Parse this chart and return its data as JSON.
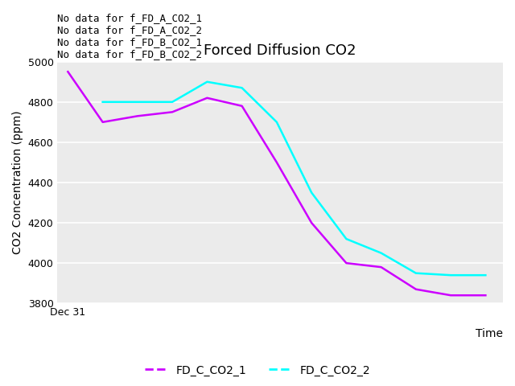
{
  "title": "Forced Diffusion CO2",
  "xlabel": "Time",
  "ylabel": "CO2 Concentration (ppm)",
  "ylim": [
    3800,
    5000
  ],
  "yticks": [
    3800,
    4000,
    4200,
    4400,
    4600,
    4800,
    5000
  ],
  "plot_bg_color": "#ebebeb",
  "fig_bg_color": "#ffffff",
  "grid_color": "#ffffff",
  "annotations": [
    "No data for f_FD_A_CO2_1",
    "No data for f_FD_A_CO2_2",
    "No data for f_FD_B_CO2_1",
    "No data for f_FD_B_CO2_2"
  ],
  "series": [
    {
      "label": "FD_C_CO2_1",
      "color": "#cc00ff",
      "x": [
        0,
        1,
        2,
        3,
        4,
        5,
        6,
        7,
        8,
        9,
        10,
        11,
        12
      ],
      "y": [
        4950,
        4700,
        4730,
        4750,
        4820,
        4780,
        4500,
        4200,
        4000,
        3980,
        3870,
        3840,
        3840
      ]
    },
    {
      "label": "FD_C_CO2_2",
      "color": "#00ffff",
      "x": [
        1,
        2,
        3,
        4,
        5,
        6,
        7,
        8,
        9,
        10,
        11,
        12
      ],
      "y": [
        4800,
        4800,
        4800,
        4900,
        4870,
        4700,
        4350,
        4120,
        4050,
        3950,
        3940,
        3940
      ]
    }
  ],
  "xticklabels": [
    "Dec 31"
  ],
  "xtick_pos": [
    0
  ],
  "xlim": [
    -0.3,
    12.5
  ],
  "title_fontsize": 13,
  "axis_label_fontsize": 10,
  "tick_fontsize": 9,
  "annotation_fontsize": 9,
  "legend_fontsize": 10,
  "line_width": 1.8
}
